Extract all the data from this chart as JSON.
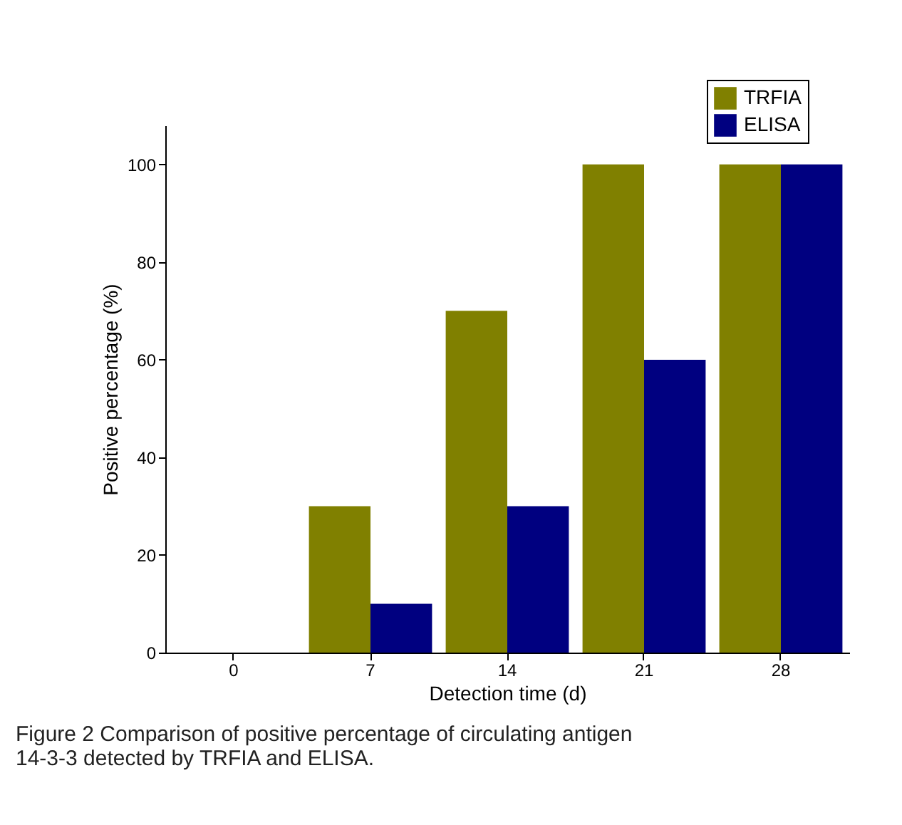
{
  "chart_data": {
    "type": "bar",
    "xlabel": "Detection time (d)",
    "ylabel": "Positive percentage (%)",
    "categories": [
      "0",
      "7",
      "14",
      "21",
      "28"
    ],
    "series": [
      {
        "name": "TRFIA",
        "color": "#808000",
        "values": [
          0,
          30,
          70,
          100,
          100
        ]
      },
      {
        "name": "ELISA",
        "color": "#000080",
        "values": [
          0,
          10,
          30,
          60,
          100
        ]
      }
    ],
    "ylim": [
      0,
      108
    ],
    "yticks": [
      0,
      20,
      40,
      60,
      80,
      100
    ],
    "grid": false,
    "legend": "top right",
    "annotations": [
      "Figure 2 Comparison of positive percentage of circulating antigen 14-3-3 detected by TRFIA and ELISA."
    ]
  }
}
